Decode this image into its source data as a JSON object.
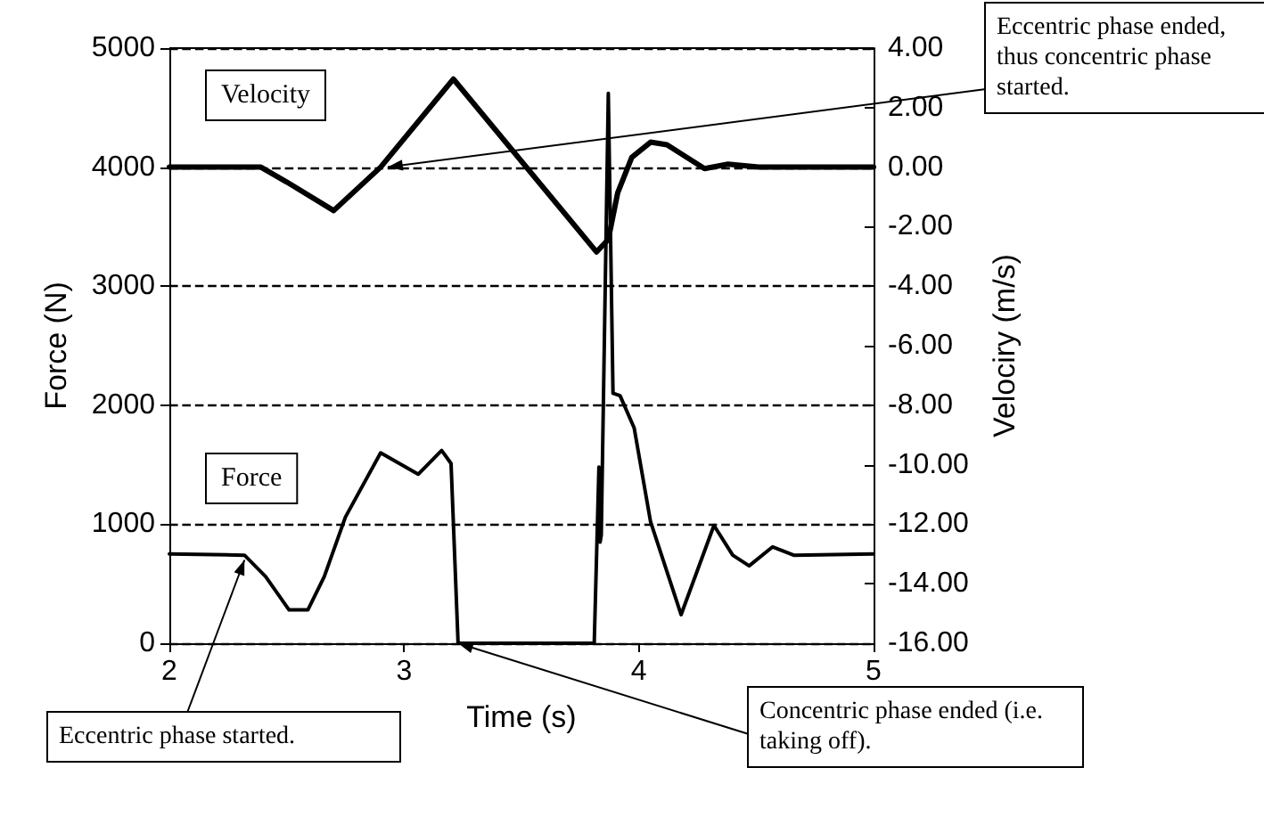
{
  "chart_data": {
    "type": "line",
    "xlabel": "Time (s)",
    "ylabel": "Force (N)",
    "y2label": "Velociry (m/s)",
    "xlim": [
      2,
      5
    ],
    "xticks": [
      2,
      3,
      4,
      5
    ],
    "ylim": [
      0,
      5000
    ],
    "yticks": [
      0,
      1000,
      2000,
      3000,
      4000,
      5000
    ],
    "y2lim": [
      -16,
      4
    ],
    "y2ticks": [
      {
        "value": 4,
        "label": "4.00"
      },
      {
        "value": 2,
        "label": "2.00"
      },
      {
        "value": 0,
        "label": "0.00"
      },
      {
        "value": -2,
        "label": "-2.00"
      },
      {
        "value": -4,
        "label": "-4.00"
      },
      {
        "value": -6,
        "label": "-6.00"
      },
      {
        "value": -8,
        "label": "-8.00"
      },
      {
        "value": -10,
        "label": "-10.00"
      },
      {
        "value": -12,
        "label": "-12.00"
      },
      {
        "value": -14,
        "label": "-14.00"
      },
      {
        "value": -16,
        "label": "-16.00"
      }
    ],
    "grid": "y",
    "legend": false,
    "marker": "none",
    "line_style": "solid",
    "series": [
      {
        "name": "Velocity",
        "color": "#000000",
        "axis": "y2",
        "x": [
          2,
          2.39,
          2.5,
          2.7,
          2.9,
          3.21,
          3.82,
          3.87,
          3.91,
          3.97,
          4.05,
          4.12,
          4.28,
          4.38,
          4.51,
          5
        ],
        "values": [
          0,
          0,
          -0.5,
          -1.46,
          0,
          2.96,
          -2.85,
          -2.43,
          -0.86,
          0.33,
          0.84,
          0.75,
          -0.05,
          0.1,
          0,
          0
        ]
      },
      {
        "name": "Force",
        "color": "#000000",
        "axis": "y",
        "x": [
          2,
          2.32,
          2.41,
          2.51,
          2.59,
          2.66,
          2.75,
          2.9,
          3.06,
          3.16,
          3.2,
          3.23,
          3.81,
          3.83,
          3.835,
          3.84,
          3.87,
          3.89,
          3.92,
          3.98,
          4.05,
          4.18,
          4.32,
          4.4,
          4.47,
          4.57,
          4.66,
          5
        ],
        "values": [
          750,
          740,
          560,
          280,
          280,
          560,
          1060,
          1600,
          1420,
          1620,
          1510,
          0,
          0,
          1480,
          850,
          910,
          4620,
          2100,
          2080,
          1810,
          1020,
          240,
          990,
          740,
          650,
          810,
          740,
          750
        ]
      }
    ],
    "annotations": [
      {
        "text": "Eccentric phase ended, thus concentric phase started.",
        "x": 2.93,
        "y": 4000
      },
      {
        "text": "Eccentric phase started.",
        "x": 2.32,
        "y": 700
      },
      {
        "text": "Concentric phase ended (i.e. taking off).",
        "x": 3.23,
        "y": 0
      }
    ]
  }
}
